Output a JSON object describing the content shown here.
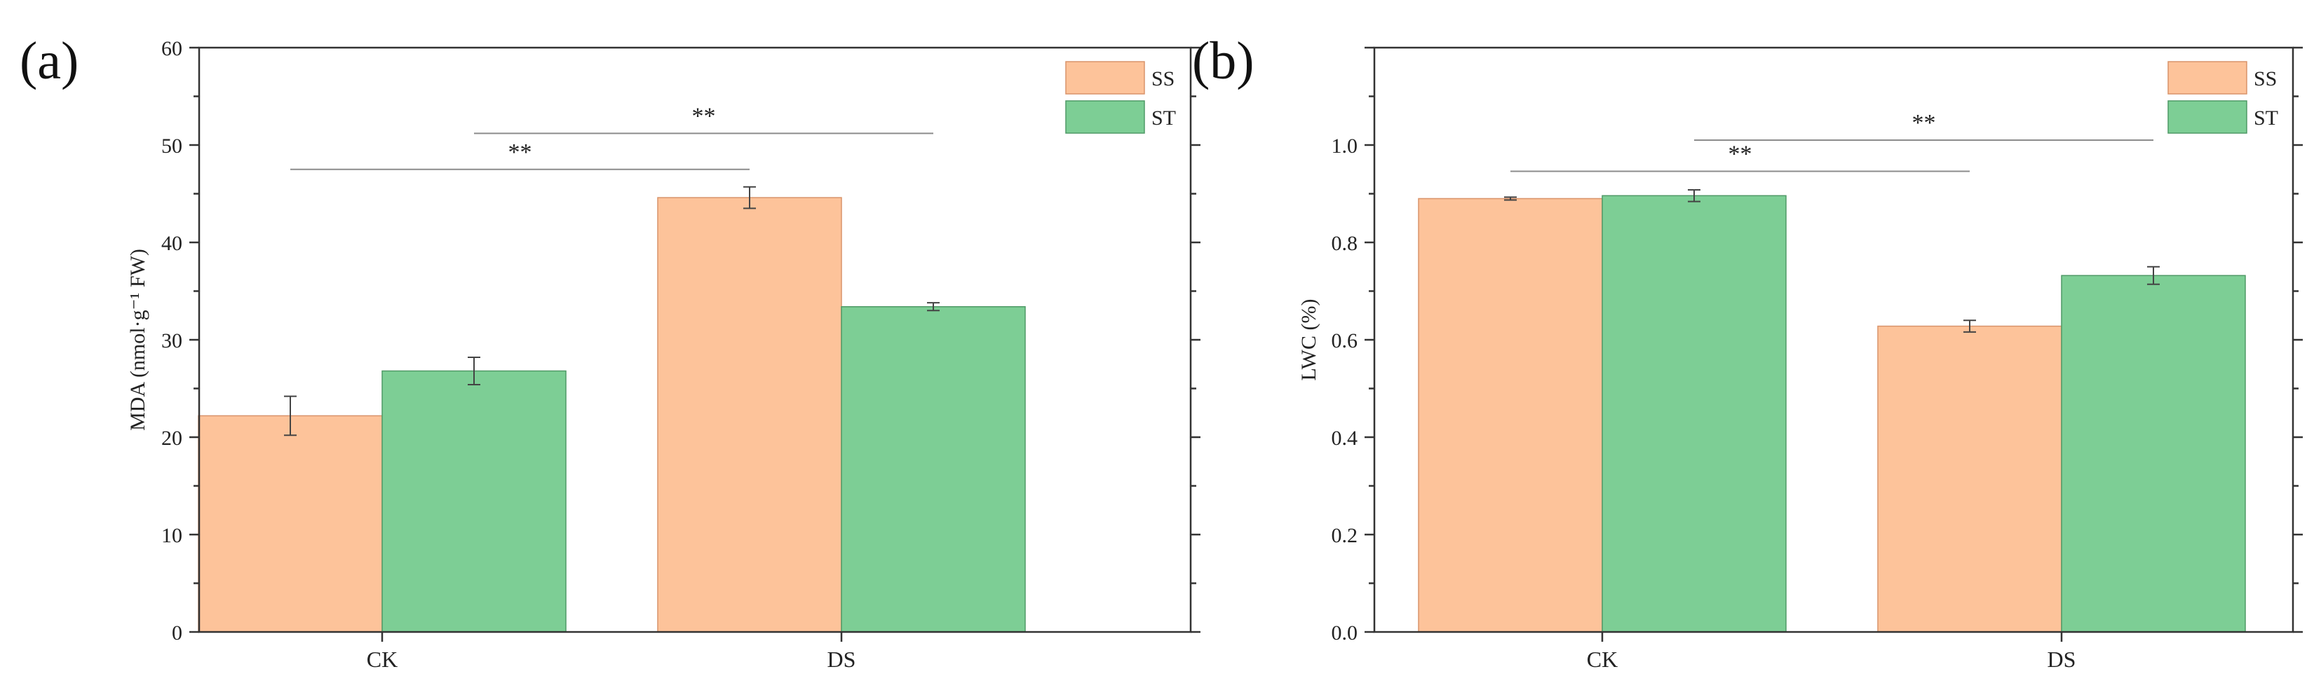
{
  "chart_data": [
    {
      "type": "bar",
      "panel_label": "(a)",
      "ylabel": "MDA (nmol·g⁻¹ FW)",
      "xlabel": "",
      "categories": [
        "CK",
        "DS"
      ],
      "ylim": [
        0,
        60
      ],
      "yticks": [
        "0",
        "10",
        "20",
        "30",
        "40",
        "50",
        "60"
      ],
      "tick_values": [
        0,
        10,
        20,
        30,
        40,
        50,
        60
      ],
      "legend_position": "top-right",
      "series": [
        {
          "name": "SS",
          "color": "#fdc39a",
          "edge": "#d9936a",
          "values": [
            22.2,
            44.6
          ],
          "errors": [
            2.0,
            1.1
          ]
        },
        {
          "name": "ST",
          "color": "#7dce95",
          "edge": "#4f9a66",
          "values": [
            26.8,
            33.4
          ],
          "errors": [
            1.4,
            0.4
          ]
        }
      ],
      "significance": [
        {
          "label": "**",
          "from": {
            "category": 0,
            "series": 0
          },
          "to": {
            "category": 1,
            "series": 0
          },
          "level": 47.5
        },
        {
          "label": "**",
          "from": {
            "category": 0,
            "series": 1
          },
          "to": {
            "category": 1,
            "series": 1
          },
          "level": 51.2
        }
      ]
    },
    {
      "type": "bar",
      "panel_label": "(b)",
      "ylabel": "LWC (%)",
      "xlabel": "",
      "categories": [
        "CK",
        "DS"
      ],
      "ylim": [
        0,
        1.2
      ],
      "yticks": [
        "0.0",
        "0.2",
        "0.4",
        "0.6",
        "0.8",
        "1.0"
      ],
      "tick_values": [
        0,
        0.2,
        0.4,
        0.6,
        0.8,
        1.0
      ],
      "legend_position": "top-right",
      "series": [
        {
          "name": "SS",
          "color": "#fdc39a",
          "edge": "#d9936a",
          "values": [
            0.89,
            0.628
          ],
          "errors": [
            0.003,
            0.012
          ]
        },
        {
          "name": "ST",
          "color": "#7dce95",
          "edge": "#4f9a66",
          "values": [
            0.896,
            0.732
          ],
          "errors": [
            0.012,
            0.018
          ]
        }
      ],
      "significance": [
        {
          "label": "**",
          "from": {
            "category": 0,
            "series": 0
          },
          "to": {
            "category": 1,
            "series": 0
          },
          "level": 0.946
        },
        {
          "label": "**",
          "from": {
            "category": 0,
            "series": 1
          },
          "to": {
            "category": 1,
            "series": 1
          },
          "level": 1.01
        }
      ]
    }
  ]
}
